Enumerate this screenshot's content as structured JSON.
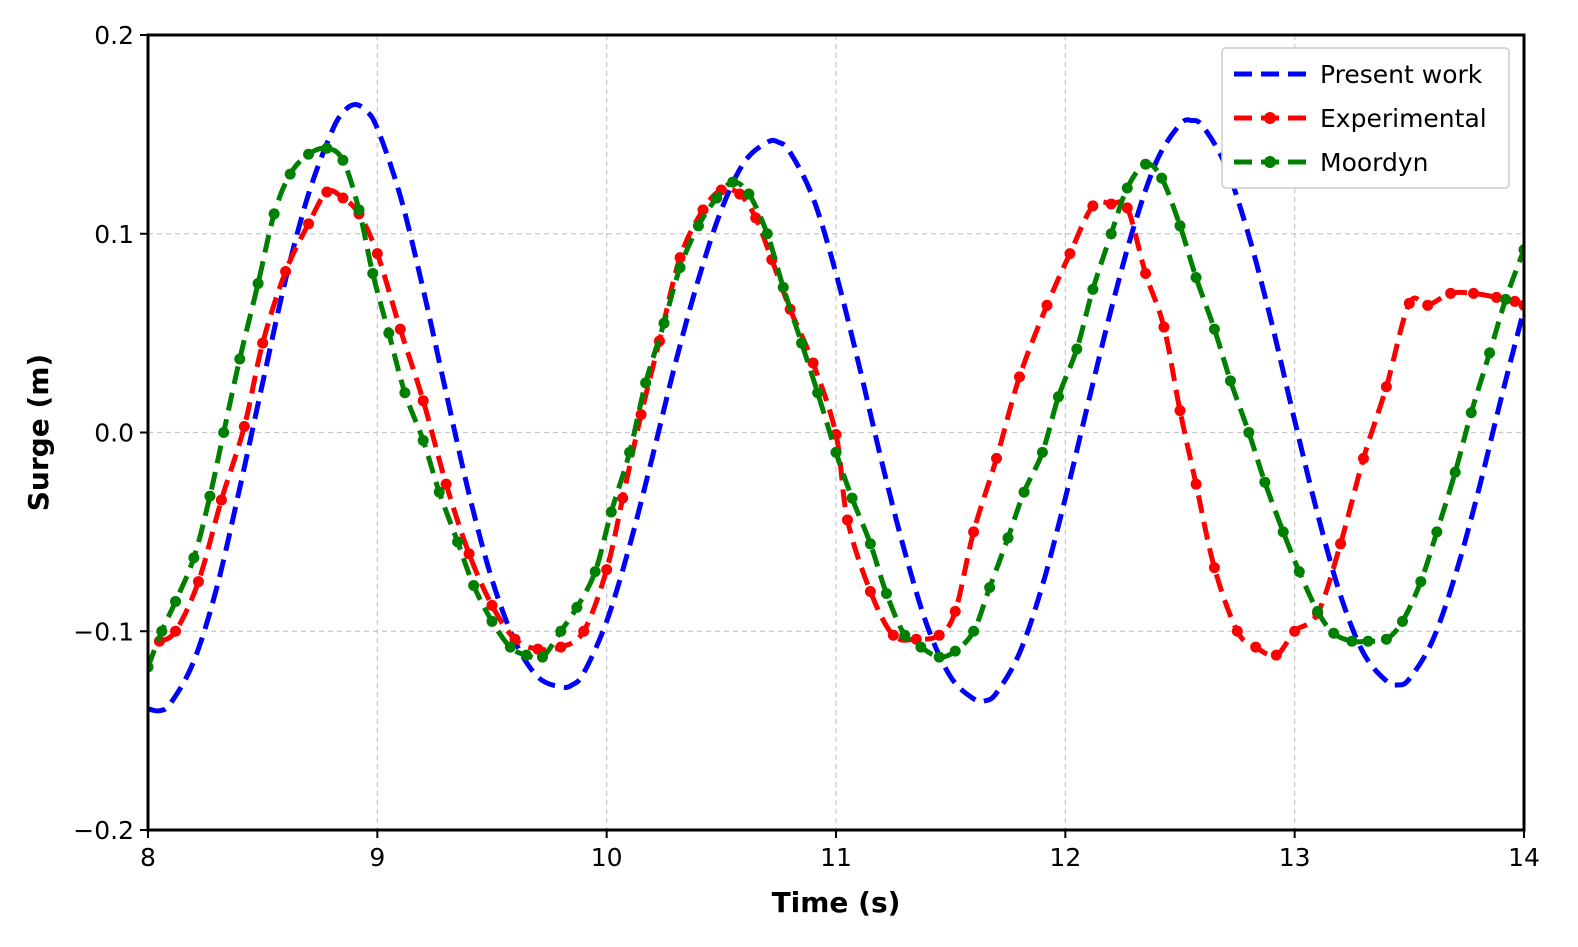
{
  "chart_data": {
    "type": "line",
    "title": "",
    "xlabel": "Time (s)",
    "ylabel": "Surge (m)",
    "xlim": [
      8,
      14
    ],
    "ylim": [
      -0.2,
      0.2
    ],
    "xticks": [
      8,
      9,
      10,
      11,
      12,
      13,
      14
    ],
    "xtick_labels": [
      "8",
      "9",
      "10",
      "11",
      "12",
      "13",
      "14"
    ],
    "yticks": [
      -0.2,
      -0.1,
      0.0,
      0.1,
      0.2
    ],
    "ytick_labels": [
      "−0.2",
      "−0.1",
      "0.0",
      "0.1",
      "0.2"
    ],
    "grid": true,
    "legend_position": "top-right",
    "series": [
      {
        "name": "Present work",
        "color": "#0000ff",
        "style": "dashed",
        "marker": "none",
        "x": [
          8.0,
          8.05,
          8.1,
          8.2,
          8.3,
          8.4,
          8.5,
          8.6,
          8.7,
          8.8,
          8.85,
          8.9,
          8.95,
          9.0,
          9.1,
          9.2,
          9.3,
          9.4,
          9.5,
          9.6,
          9.7,
          9.8,
          9.85,
          9.9,
          10.0,
          10.1,
          10.2,
          10.3,
          10.4,
          10.5,
          10.6,
          10.7,
          10.75,
          10.8,
          10.9,
          11.0,
          11.1,
          11.2,
          11.3,
          11.4,
          11.5,
          11.6,
          11.65,
          11.7,
          11.8,
          11.9,
          12.0,
          12.1,
          12.2,
          12.3,
          12.4,
          12.5,
          12.55,
          12.6,
          12.7,
          12.8,
          12.9,
          13.0,
          13.1,
          13.2,
          13.3,
          13.4,
          13.45,
          13.5,
          13.6,
          13.7,
          13.8,
          13.9,
          14.0
        ],
        "y": [
          -0.139,
          -0.14,
          -0.136,
          -0.115,
          -0.078,
          -0.028,
          0.025,
          0.077,
          0.12,
          0.151,
          0.161,
          0.165,
          0.162,
          0.153,
          0.119,
          0.072,
          0.02,
          -0.031,
          -0.074,
          -0.105,
          -0.123,
          -0.128,
          -0.127,
          -0.121,
          -0.095,
          -0.057,
          -0.012,
          0.035,
          0.077,
          0.112,
          0.136,
          0.146,
          0.146,
          0.141,
          0.118,
          0.08,
          0.034,
          -0.015,
          -0.06,
          -0.098,
          -0.123,
          -0.134,
          -0.135,
          -0.131,
          -0.111,
          -0.077,
          -0.033,
          0.015,
          0.062,
          0.104,
          0.137,
          0.155,
          0.157,
          0.154,
          0.134,
          0.099,
          0.055,
          0.006,
          -0.041,
          -0.082,
          -0.111,
          -0.125,
          -0.127,
          -0.124,
          -0.105,
          -0.072,
          -0.03,
          0.017,
          0.062
        ]
      },
      {
        "name": "Experimental",
        "color": "#ff0000",
        "style": "dashed",
        "marker": "circle",
        "x": [
          8.05,
          8.12,
          8.22,
          8.32,
          8.42,
          8.5,
          8.6,
          8.7,
          8.78,
          8.85,
          8.92,
          9.0,
          9.1,
          9.2,
          9.3,
          9.4,
          9.5,
          9.6,
          9.7,
          9.8,
          9.9,
          10.0,
          10.07,
          10.15,
          10.23,
          10.32,
          10.42,
          10.5,
          10.58,
          10.65,
          10.72,
          10.8,
          10.9,
          11.0,
          11.05,
          11.15,
          11.25,
          11.35,
          11.45,
          11.52,
          11.6,
          11.7,
          11.8,
          11.92,
          12.02,
          12.12,
          12.2,
          12.27,
          12.35,
          12.43,
          12.5,
          12.57,
          12.65,
          12.75,
          12.83,
          12.92,
          13.0,
          13.1,
          13.2,
          13.3,
          13.4,
          13.5,
          13.58,
          13.68,
          13.78,
          13.88,
          13.96,
          14.0
        ],
        "y": [
          -0.105,
          -0.1,
          -0.075,
          -0.034,
          0.003,
          0.045,
          0.081,
          0.105,
          0.121,
          0.118,
          0.11,
          0.09,
          0.052,
          0.016,
          -0.026,
          -0.061,
          -0.087,
          -0.104,
          -0.109,
          -0.108,
          -0.1,
          -0.069,
          -0.033,
          0.009,
          0.046,
          0.088,
          0.112,
          0.122,
          0.12,
          0.108,
          0.087,
          0.062,
          0.035,
          -0.001,
          -0.044,
          -0.08,
          -0.102,
          -0.104,
          -0.102,
          -0.09,
          -0.05,
          -0.013,
          0.028,
          0.064,
          0.09,
          0.114,
          0.115,
          0.113,
          0.08,
          0.053,
          0.011,
          -0.026,
          -0.068,
          -0.1,
          -0.108,
          -0.112,
          -0.1,
          -0.091,
          -0.056,
          -0.013,
          0.023,
          0.065,
          0.064,
          0.07,
          0.07,
          0.068,
          0.066,
          0.064
        ]
      },
      {
        "name": "Moordyn",
        "color": "#008000",
        "style": "dashed",
        "marker": "circle",
        "x": [
          8.0,
          8.06,
          8.12,
          8.2,
          8.27,
          8.33,
          8.4,
          8.48,
          8.55,
          8.62,
          8.7,
          8.78,
          8.85,
          8.92,
          8.98,
          9.05,
          9.12,
          9.2,
          9.27,
          9.35,
          9.42,
          9.5,
          9.58,
          9.65,
          9.72,
          9.8,
          9.87,
          9.95,
          10.02,
          10.1,
          10.17,
          10.25,
          10.32,
          10.4,
          10.48,
          10.55,
          10.62,
          10.7,
          10.77,
          10.85,
          10.92,
          11.0,
          11.07,
          11.15,
          11.22,
          11.3,
          11.37,
          11.45,
          11.52,
          11.6,
          11.67,
          11.75,
          11.82,
          11.9,
          11.97,
          12.05,
          12.12,
          12.2,
          12.27,
          12.35,
          12.42,
          12.5,
          12.57,
          12.65,
          12.72,
          12.8,
          12.87,
          12.95,
          13.02,
          13.1,
          13.17,
          13.25,
          13.32,
          13.4,
          13.47,
          13.55,
          13.62,
          13.7,
          13.77,
          13.85,
          13.92,
          14.0
        ],
        "y": [
          -0.118,
          -0.1,
          -0.085,
          -0.063,
          -0.032,
          0.0,
          0.037,
          0.075,
          0.11,
          0.13,
          0.14,
          0.143,
          0.137,
          0.112,
          0.08,
          0.05,
          0.02,
          -0.004,
          -0.03,
          -0.055,
          -0.077,
          -0.095,
          -0.108,
          -0.112,
          -0.113,
          -0.1,
          -0.088,
          -0.07,
          -0.04,
          -0.01,
          0.025,
          0.055,
          0.083,
          0.104,
          0.118,
          0.126,
          0.12,
          0.1,
          0.073,
          0.045,
          0.02,
          -0.01,
          -0.033,
          -0.056,
          -0.081,
          -0.102,
          -0.108,
          -0.113,
          -0.11,
          -0.1,
          -0.078,
          -0.053,
          -0.03,
          -0.01,
          0.018,
          0.042,
          0.072,
          0.1,
          0.123,
          0.135,
          0.128,
          0.104,
          0.078,
          0.052,
          0.026,
          0.0,
          -0.025,
          -0.05,
          -0.07,
          -0.09,
          -0.101,
          -0.105,
          -0.105,
          -0.104,
          -0.095,
          -0.075,
          -0.05,
          -0.02,
          0.01,
          0.04,
          0.067,
          0.092
        ]
      }
    ]
  }
}
